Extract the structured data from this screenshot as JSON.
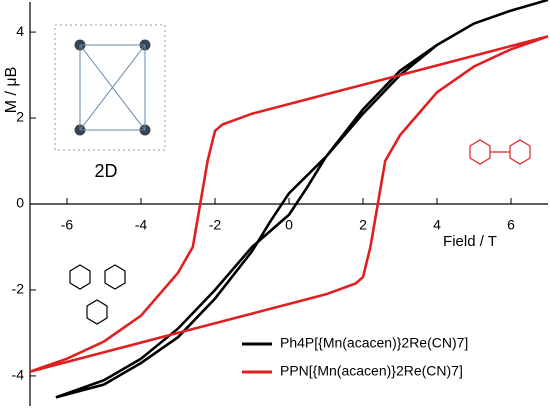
{
  "chart_data": {
    "type": "line",
    "title_y": "M / μB",
    "title_x": "Field / T",
    "inset_label": "2D",
    "xlim": [
      -7,
      7
    ],
    "xticks": [
      -6,
      -4,
      -2,
      0,
      2,
      4,
      6
    ],
    "ylim": [
      -4.7,
      4.7
    ],
    "yticks": [
      -4,
      -2,
      0,
      2,
      4
    ],
    "legend": "lower right",
    "series": [
      {
        "name": "Ph4P[{Mn(acacen)}2Re(CN)7]",
        "color": "#000000",
        "x": [
          -6.3,
          -5,
          -4,
          -3,
          -2,
          -1,
          0,
          0.5,
          1,
          2,
          3,
          4,
          5,
          6,
          7,
          6,
          5,
          4,
          3,
          2,
          1,
          0,
          -0.5,
          -1,
          -2,
          -3,
          -4,
          -5,
          -6.3
        ],
        "values": [
          -4.5,
          -4.1,
          -3.6,
          -2.9,
          -2.0,
          -1.0,
          -0.25,
          0.4,
          1.1,
          2.2,
          3.1,
          3.7,
          4.2,
          4.5,
          4.75,
          4.5,
          4.2,
          3.7,
          3.0,
          2.1,
          1.1,
          0.25,
          -0.4,
          -1.1,
          -2.2,
          -3.1,
          -3.7,
          -4.2,
          -4.5
        ]
      },
      {
        "name": "PPN[{Mn(acacen)}2Re(CN)7]",
        "color": "#e02020",
        "x": [
          7,
          5,
          3,
          1,
          -1,
          -1.8,
          -2.0,
          -2.2,
          -2.4,
          -2.6,
          -3.0,
          -4,
          -5,
          -6,
          -7,
          -5,
          -3,
          -1,
          1,
          1.8,
          2.0,
          2.2,
          2.4,
          2.6,
          3.0,
          4,
          5,
          6,
          7
        ],
        "values": [
          3.9,
          3.45,
          3.0,
          2.55,
          2.1,
          1.85,
          1.7,
          1.0,
          0,
          -1.0,
          -1.6,
          -2.6,
          -3.2,
          -3.6,
          -3.9,
          -3.45,
          -3.0,
          -2.55,
          -2.1,
          -1.85,
          -1.7,
          -1.0,
          0,
          1.0,
          1.6,
          2.6,
          3.2,
          3.6,
          3.9
        ]
      }
    ]
  }
}
